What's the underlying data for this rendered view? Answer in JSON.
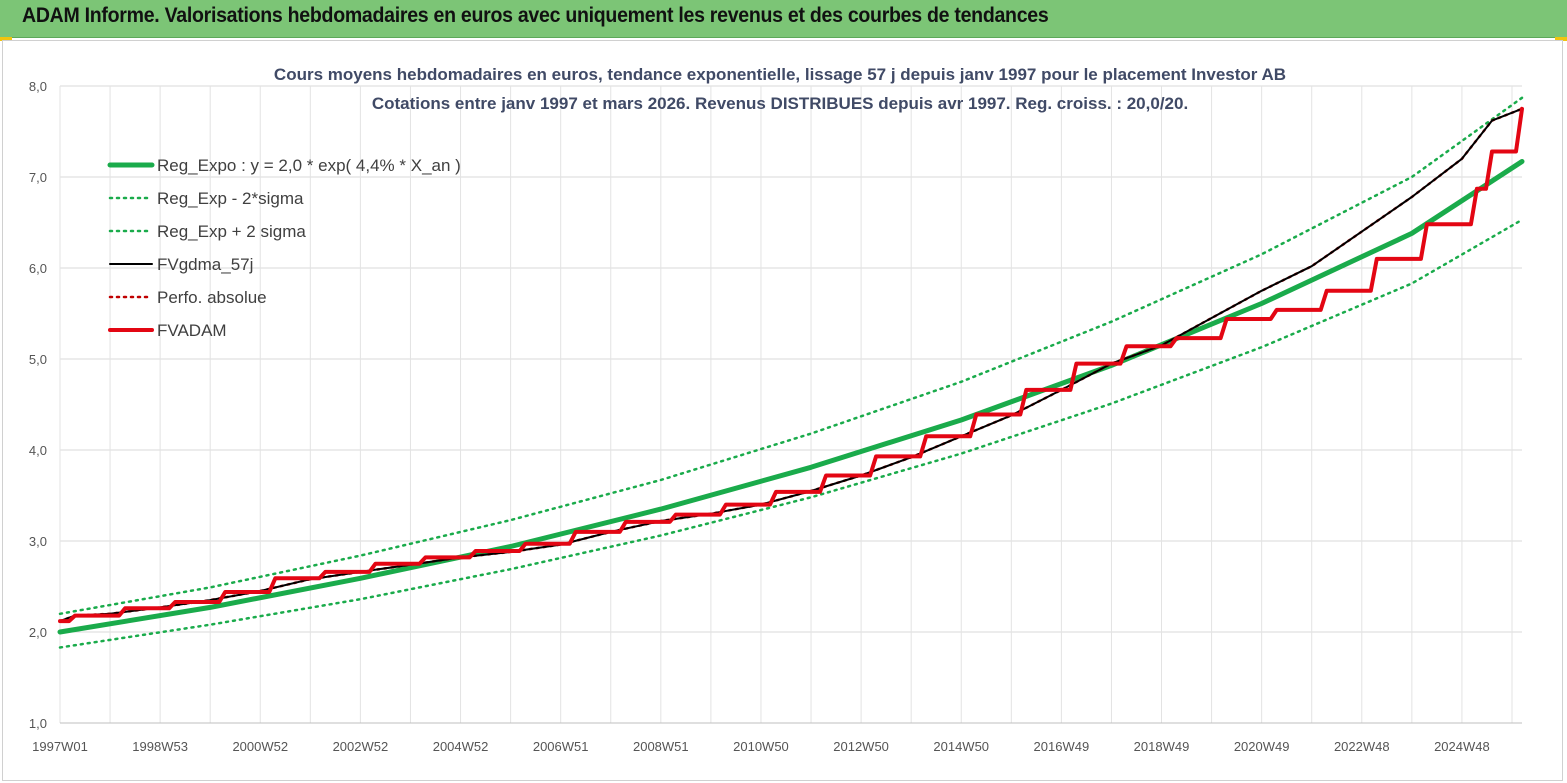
{
  "header": {
    "title": "ADAM Informe. Valorisations hebdomadaires en euros avec uniquement les revenus et des courbes de tendances"
  },
  "colors": {
    "header_bg": "#7cc576",
    "trend": "#1aab4b",
    "fvgdma": "#000000",
    "perfo": "#c00000",
    "fvadam": "#e30613"
  },
  "chart_data": {
    "type": "line",
    "title": "Cours moyens hebdomadaires en euros, tendance exponentielle, lissage 57 j depuis janv 1997 pour le placement Investor AB",
    "subtitle": "Cotations entre janv 1997 et mars 2026. Revenus DISTRIBUES depuis avr 1997. Reg. croiss. : 20,0/20.",
    "xlabel": "",
    "ylabel": "",
    "ylim": [
      1.0,
      8.0
    ],
    "yticks": [
      "1,0",
      "2,0",
      "3,0",
      "4,0",
      "5,0",
      "6,0",
      "7,0",
      "8,0"
    ],
    "xlim": [
      1997.0,
      2026.2
    ],
    "xticks": [
      {
        "label": "1997W01",
        "x": 1997.0
      },
      {
        "label": "1998W53",
        "x": 1999.0
      },
      {
        "label": "2000W52",
        "x": 2001.0
      },
      {
        "label": "2002W52",
        "x": 2003.0
      },
      {
        "label": "2004W52",
        "x": 2005.0
      },
      {
        "label": "2006W51",
        "x": 2007.0
      },
      {
        "label": "2008W51",
        "x": 2009.0
      },
      {
        "label": "2010W50",
        "x": 2011.0
      },
      {
        "label": "2012W50",
        "x": 2013.0
      },
      {
        "label": "2014W50",
        "x": 2015.0
      },
      {
        "label": "2016W49",
        "x": 2017.0
      },
      {
        "label": "2018W49",
        "x": 2019.0
      },
      {
        "label": "2020W49",
        "x": 2021.0
      },
      {
        "label": "2022W48",
        "x": 2023.0
      },
      {
        "label": "2024W48",
        "x": 2025.0
      }
    ],
    "grid": true,
    "legend_position": "top-left",
    "series": [
      {
        "name": "Reg_Expo : y = 2,0 * exp( 4,4% *  X_an )",
        "style": "solid-thick",
        "color": "#1aab4b",
        "x": [
          1997.0,
          2000.0,
          2003.0,
          2006.0,
          2009.0,
          2012.0,
          2015.0,
          2018.0,
          2021.0,
          2024.0,
          2026.2
        ],
        "y": [
          2.0,
          2.27,
          2.59,
          2.94,
          3.35,
          3.81,
          4.33,
          4.93,
          5.61,
          6.38,
          7.17
        ]
      },
      {
        "name": "Reg_Exp - 2*sigma",
        "style": "dotted",
        "color": "#1aab4b",
        "x": [
          1997.0,
          2000.0,
          2003.0,
          2006.0,
          2009.0,
          2012.0,
          2015.0,
          2018.0,
          2021.0,
          2024.0,
          2026.2
        ],
        "y": [
          1.83,
          2.08,
          2.36,
          2.69,
          3.06,
          3.48,
          3.96,
          4.51,
          5.13,
          5.83,
          6.53
        ]
      },
      {
        "name": "Reg_Exp + 2 sigma",
        "style": "dotted",
        "color": "#1aab4b",
        "x": [
          1997.0,
          2000.0,
          2003.0,
          2006.0,
          2009.0,
          2012.0,
          2015.0,
          2018.0,
          2021.0,
          2024.0,
          2026.2
        ],
        "y": [
          2.2,
          2.49,
          2.84,
          3.23,
          3.67,
          4.18,
          4.75,
          5.41,
          6.15,
          7.0,
          7.87
        ]
      },
      {
        "name": "FVgdma_57j",
        "style": "solid",
        "color": "#000000",
        "x": [
          1997.0,
          1997.3,
          1998.0,
          1999.0,
          2000.0,
          2001.0,
          2002.0,
          2003.0,
          2004.0,
          2005.0,
          2006.0,
          2007.0,
          2008.0,
          2009.0,
          2010.0,
          2011.0,
          2012.0,
          2013.0,
          2014.0,
          2015.0,
          2016.0,
          2017.0,
          2018.0,
          2019.0,
          2020.0,
          2021.0,
          2022.0,
          2023.0,
          2024.0,
          2025.0,
          2025.6,
          2026.2
        ],
        "y": [
          2.12,
          2.18,
          2.2,
          2.27,
          2.35,
          2.45,
          2.58,
          2.66,
          2.74,
          2.82,
          2.88,
          2.96,
          3.1,
          3.22,
          3.3,
          3.4,
          3.55,
          3.72,
          3.92,
          4.15,
          4.38,
          4.66,
          4.95,
          5.15,
          5.45,
          5.75,
          6.02,
          6.4,
          6.78,
          7.2,
          7.62,
          7.75
        ]
      },
      {
        "name": "Perfo. absolue",
        "style": "dotted",
        "color": "#c00000",
        "x": [
          1997.0,
          1997.3,
          1998.0,
          1999.0,
          2000.0,
          2001.0,
          2002.0,
          2003.0,
          2004.0,
          2005.0,
          2006.0,
          2007.0,
          2008.0,
          2009.0,
          2010.0,
          2011.0,
          2012.0,
          2013.0,
          2014.0,
          2015.0,
          2016.0,
          2017.0,
          2018.0,
          2019.0,
          2020.0,
          2021.0,
          2022.0,
          2023.0,
          2024.0,
          2025.0,
          2025.6,
          2026.2
        ],
        "y": [
          2.12,
          2.18,
          2.2,
          2.27,
          2.35,
          2.45,
          2.58,
          2.66,
          2.74,
          2.82,
          2.88,
          2.96,
          3.1,
          3.22,
          3.3,
          3.4,
          3.55,
          3.72,
          3.92,
          4.15,
          4.38,
          4.66,
          4.95,
          5.15,
          5.45,
          5.75,
          6.02,
          6.4,
          6.78,
          7.2,
          7.62,
          7.75
        ]
      },
      {
        "name": "FVADAM",
        "style": "step-thick",
        "color": "#e30613",
        "x": [
          1997.0,
          1997.3,
          1998.3,
          1999.3,
          2000.3,
          2001.3,
          2002.3,
          2003.3,
          2004.3,
          2005.3,
          2006.3,
          2007.3,
          2008.3,
          2009.3,
          2010.3,
          2011.3,
          2012.3,
          2013.3,
          2014.3,
          2015.3,
          2016.3,
          2017.3,
          2018.3,
          2019.3,
          2020.3,
          2021.3,
          2022.3,
          2023.3,
          2024.3,
          2025.3,
          2025.6,
          2026.2
        ],
        "y": [
          2.12,
          2.18,
          2.26,
          2.33,
          2.44,
          2.59,
          2.66,
          2.75,
          2.82,
          2.89,
          2.97,
          3.1,
          3.21,
          3.29,
          3.4,
          3.54,
          3.72,
          3.93,
          4.15,
          4.39,
          4.66,
          4.95,
          5.14,
          5.23,
          5.44,
          5.54,
          5.75,
          6.1,
          6.48,
          6.87,
          7.28,
          7.75
        ]
      }
    ]
  }
}
